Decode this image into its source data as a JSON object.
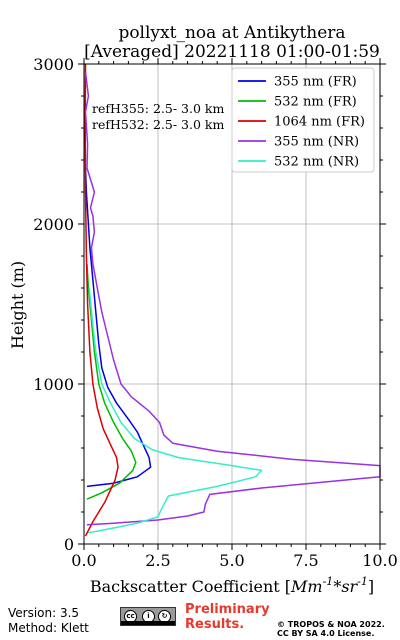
{
  "chart_data": {
    "type": "line",
    "title": "pollyxt_noa at Antikythera",
    "subtitle": "[Averaged] 20221118 01:00-01:59",
    "xlabel": "Backscatter Coefficient [",
    "xlabel_unit": "Mm",
    "xlabel_unit_exp1": "-1",
    "xlabel_unit_mid": "*sr",
    "xlabel_unit_exp2": "-1",
    "xlabel_close": "]",
    "ylabel": "Height (m)",
    "xlim": [
      0,
      10
    ],
    "ylim": [
      0,
      3000
    ],
    "xticks": [
      0,
      2.5,
      5,
      7.5,
      10
    ],
    "xtick_labels": [
      "0.0",
      "2.5",
      "5.0",
      "7.5",
      "10.0"
    ],
    "yticks": [
      0,
      1000,
      2000,
      3000
    ],
    "ytick_labels": [
      "0",
      "1000",
      "2000",
      "3000"
    ],
    "grid": true,
    "legend_position": "top-right",
    "annotations": [
      "refH355:  2.5- 3.0 km",
      "refH532:  2.5- 3.0 km"
    ],
    "series": [
      {
        "name": "355 nm (FR)",
        "color": "#0000e6",
        "points": [
          [
            0.1,
            360
          ],
          [
            1.0,
            380
          ],
          [
            1.8,
            420
          ],
          [
            2.25,
            480
          ],
          [
            2.2,
            540
          ],
          [
            2.0,
            620
          ],
          [
            1.8,
            700
          ],
          [
            1.5,
            780
          ],
          [
            1.1,
            880
          ],
          [
            0.8,
            980
          ],
          [
            0.6,
            1100
          ],
          [
            0.5,
            1250
          ],
          [
            0.4,
            1450
          ],
          [
            0.3,
            1650
          ],
          [
            0.2,
            1850
          ],
          [
            0.15,
            2000
          ],
          [
            0.08,
            2200
          ],
          [
            0.05,
            2350
          ]
        ]
      },
      {
        "name": "532 nm (FR)",
        "color": "#00bb00",
        "points": [
          [
            0.1,
            280
          ],
          [
            0.6,
            320
          ],
          [
            1.2,
            380
          ],
          [
            1.65,
            460
          ],
          [
            1.75,
            510
          ],
          [
            1.6,
            580
          ],
          [
            1.3,
            660
          ],
          [
            1.0,
            760
          ],
          [
            0.7,
            880
          ],
          [
            0.5,
            1000
          ],
          [
            0.35,
            1200
          ],
          [
            0.25,
            1400
          ],
          [
            0.15,
            1600
          ],
          [
            0.1,
            1750
          ]
        ]
      },
      {
        "name": "1064 nm (FR)",
        "color": "#dd0000",
        "points": [
          [
            0.05,
            50
          ],
          [
            0.3,
            140
          ],
          [
            0.7,
            260
          ],
          [
            1.05,
            400
          ],
          [
            1.15,
            480
          ],
          [
            1.1,
            540
          ],
          [
            0.9,
            620
          ],
          [
            0.65,
            720
          ],
          [
            0.45,
            850
          ],
          [
            0.3,
            1000
          ],
          [
            0.2,
            1200
          ],
          [
            0.12,
            1500
          ],
          [
            0.08,
            1800
          ],
          [
            0.05,
            2200
          ],
          [
            0.04,
            2600
          ],
          [
            0.05,
            3000
          ]
        ]
      },
      {
        "name": "355 nm (NR)",
        "color": "#9b30e0",
        "points": [
          [
            0.1,
            120
          ],
          [
            1.0,
            130
          ],
          [
            2.5,
            150
          ],
          [
            3.5,
            175
          ],
          [
            4.05,
            200
          ],
          [
            4.1,
            250
          ],
          [
            4.25,
            310
          ],
          [
            6.0,
            350
          ],
          [
            10.0,
            420
          ],
          [
            10.0,
            490
          ],
          [
            7.0,
            530
          ],
          [
            4.5,
            580
          ],
          [
            3.0,
            630
          ],
          [
            2.7,
            680
          ],
          [
            2.55,
            760
          ],
          [
            2.2,
            830
          ],
          [
            1.6,
            920
          ],
          [
            1.25,
            1000
          ],
          [
            1.0,
            1150
          ],
          [
            0.8,
            1300
          ],
          [
            0.6,
            1450
          ],
          [
            0.45,
            1600
          ],
          [
            0.3,
            1750
          ],
          [
            0.25,
            1850
          ],
          [
            0.35,
            1950
          ],
          [
            0.3,
            2050
          ],
          [
            0.22,
            2100
          ],
          [
            0.35,
            2200
          ],
          [
            0.1,
            2350
          ],
          [
            0.12,
            2500
          ],
          [
            0.05,
            2700
          ],
          [
            0.15,
            2800
          ],
          [
            0.05,
            2950
          ]
        ]
      },
      {
        "name": "532 nm (NR)",
        "color": "#33eec8",
        "points": [
          [
            0.15,
            70
          ],
          [
            1.0,
            100
          ],
          [
            1.8,
            130
          ],
          [
            2.5,
            170
          ],
          [
            2.65,
            230
          ],
          [
            2.85,
            300
          ],
          [
            4.5,
            360
          ],
          [
            5.8,
            420
          ],
          [
            6.0,
            460
          ],
          [
            5.0,
            490
          ],
          [
            3.2,
            540
          ],
          [
            2.3,
            590
          ],
          [
            1.7,
            660
          ],
          [
            1.25,
            760
          ],
          [
            0.9,
            880
          ],
          [
            0.6,
            1000
          ],
          [
            0.4,
            1200
          ],
          [
            0.28,
            1400
          ],
          [
            0.18,
            1600
          ]
        ]
      }
    ]
  },
  "footer": {
    "version": "Version: 3.5",
    "method": "Method: Klett",
    "preliminary_line1": "Preliminary",
    "preliminary_line2": "Results.",
    "copyright_line1": "© TROPOS & NOA 2022.",
    "copyright_line2": "CC BY SA 4.0 License."
  },
  "license_badge": {
    "icon": "cc-by-sa-icon"
  }
}
